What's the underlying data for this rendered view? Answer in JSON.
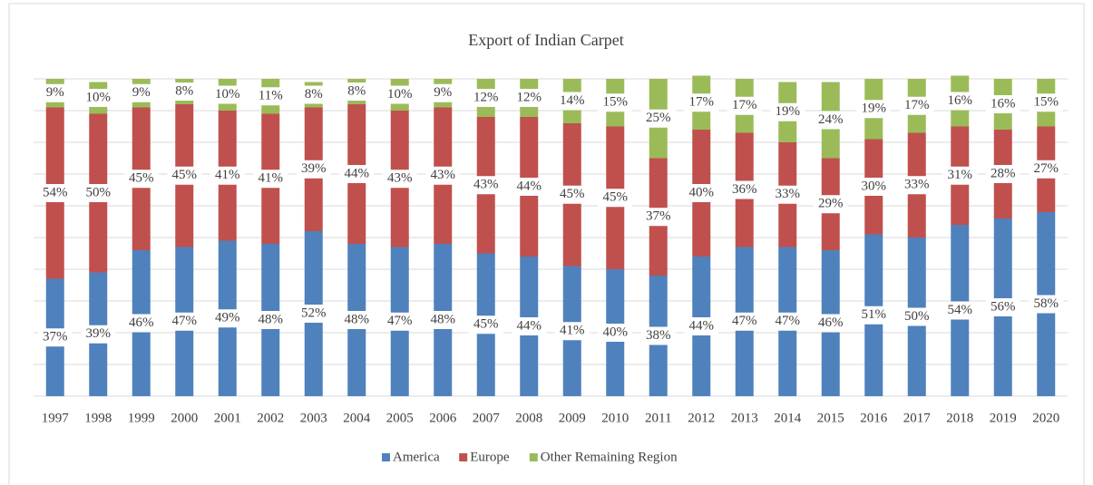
{
  "chart_data": {
    "type": "stacked_bar_100",
    "title": "Export of Indian Carpet",
    "categories": [
      "1997",
      "1998",
      "1999",
      "2000",
      "2001",
      "2002",
      "2003",
      "2004",
      "2005",
      "2006",
      "2007",
      "2008",
      "2009",
      "2010",
      "2011",
      "2012",
      "2013",
      "2014",
      "2015",
      "2016",
      "2017",
      "2018",
      "2019",
      "2020"
    ],
    "series": [
      {
        "name": "America",
        "color": "#4f81bd",
        "values": [
          37,
          39,
          46,
          47,
          49,
          48,
          52,
          48,
          47,
          48,
          45,
          44,
          41,
          40,
          38,
          44,
          47,
          47,
          46,
          51,
          50,
          54,
          56,
          58
        ],
        "value_labels": [
          "37%",
          "39%",
          "46%",
          "47%",
          "49%",
          "48%",
          "52%",
          "48%",
          "47%",
          "48%",
          "45%",
          "44%",
          "41%",
          "40%",
          "38%",
          "44%",
          "47%",
          "47%",
          "46%",
          "51%",
          "50%",
          "54%",
          "56%",
          "58%"
        ]
      },
      {
        "name": "Europe",
        "color": "#c0504d",
        "values": [
          54,
          50,
          45,
          45,
          41,
          41,
          39,
          44,
          43,
          43,
          43,
          44,
          45,
          45,
          37,
          40,
          36,
          33,
          29,
          30,
          33,
          31,
          28,
          27
        ],
        "value_labels": [
          "54%",
          "50%",
          "45%",
          "45%",
          "41%",
          "41%",
          "39%",
          "44%",
          "43%",
          "43%",
          "43%",
          "44%",
          "45%",
          "45%",
          "37%",
          "40%",
          "36%",
          "33%",
          "29%",
          "30%",
          "33%",
          "31%",
          "28%",
          "27%"
        ]
      },
      {
        "name": "Other Remaining Region",
        "color": "#9bbb59",
        "values": [
          9,
          10,
          9,
          8,
          10,
          11,
          8,
          8,
          10,
          9,
          12,
          12,
          14,
          15,
          25,
          17,
          17,
          19,
          24,
          19,
          17,
          16,
          16,
          15
        ],
        "value_labels": [
          "9%",
          "10%",
          "9%",
          "8%",
          "10%",
          "11%",
          "8%",
          "8%",
          "10%",
          "9%",
          "12%",
          "12%",
          "14%",
          "15%",
          "25%",
          "17%",
          "17%",
          "19%",
          "24%",
          "19%",
          "17%",
          "16%",
          "16%",
          "15%"
        ]
      }
    ],
    "ylim": [
      0,
      100
    ],
    "yticks": [
      0,
      10,
      20,
      30,
      40,
      50,
      60,
      70,
      80,
      90,
      100
    ],
    "grid": true
  }
}
